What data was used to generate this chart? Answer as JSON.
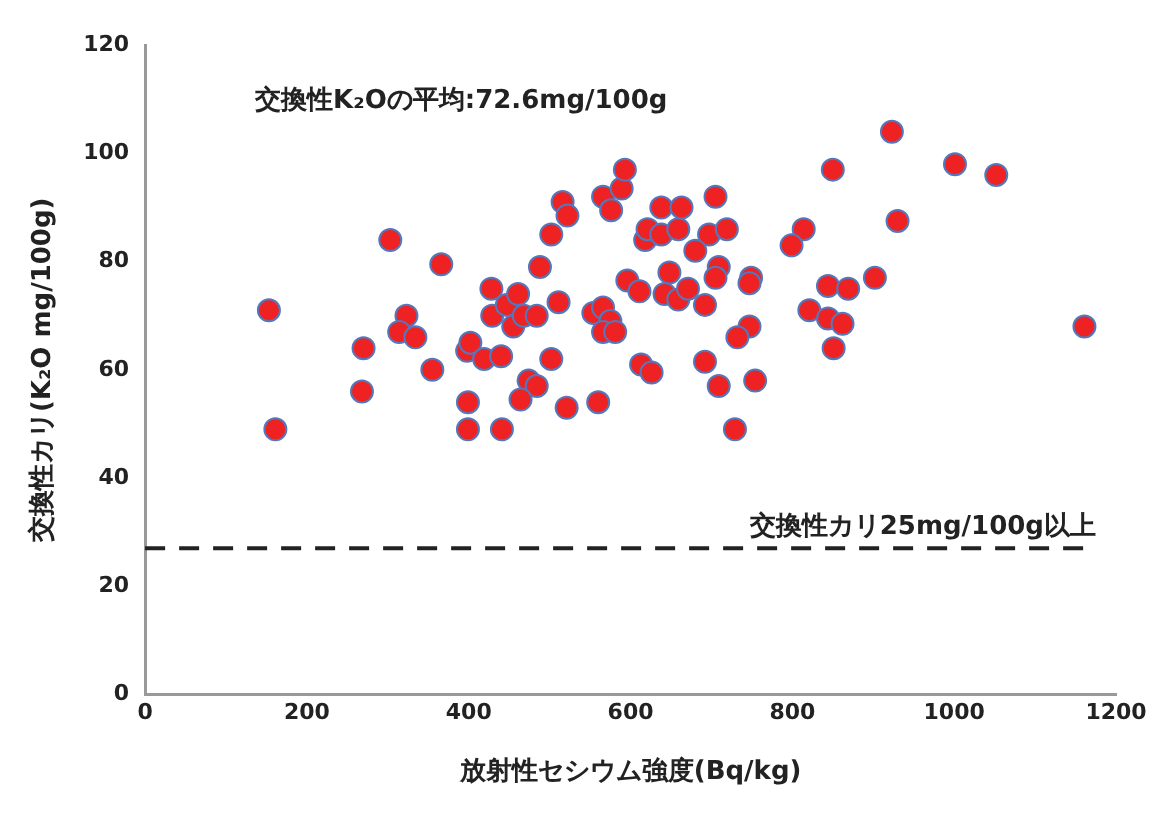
{
  "chart_data": {
    "type": "scatter",
    "xlabel": "放射性セシウム強度(Bq/kg)",
    "ylabel": "交換性カリ(K₂O mg/100g)",
    "annotations": [
      "交換性K₂Oの平均:72.6mg/100g"
    ],
    "x": [
      153,
      161,
      303,
      366,
      270,
      268,
      323,
      314,
      334,
      355,
      398,
      402,
      419,
      440,
      399,
      399,
      441,
      428,
      429,
      447,
      461,
      455,
      468,
      484,
      488,
      502,
      511,
      502,
      474,
      484,
      464,
      521,
      560,
      516,
      522,
      566,
      576,
      589,
      593,
      554,
      566,
      575,
      566,
      581,
      596,
      611,
      618,
      621,
      638,
      638,
      659,
      663,
      648,
      642,
      659,
      613,
      626,
      705,
      697,
      719,
      680,
      709,
      705,
      749,
      747,
      671,
      692,
      747,
      732,
      692,
      709,
      754,
      729,
      850,
      923,
      1001,
      1052,
      930,
      814,
      799,
      902,
      844,
      869,
      821,
      844,
      862,
      851,
      1161
    ],
    "series": [
      {
        "color": "#ee2222",
        "values": [
          71,
          49,
          84,
          79.5,
          64,
          56,
          70,
          67,
          66,
          60,
          63.5,
          65,
          62,
          62.5,
          54,
          49,
          49,
          75,
          70,
          72,
          74,
          68,
          70,
          70,
          79,
          85,
          72.5,
          62,
          58,
          57,
          54.5,
          53,
          54,
          91,
          88.5,
          92,
          89.5,
          93.5,
          97,
          70.5,
          71.5,
          69,
          67,
          67,
          76.5,
          74.5,
          84,
          86,
          90,
          85,
          86,
          90,
          78,
          74,
          73,
          61,
          59.5,
          92,
          85,
          86,
          82,
          79,
          77,
          77,
          76,
          75,
          72,
          68,
          66,
          61.5,
          57,
          58,
          49,
          97,
          104,
          98,
          96,
          87.5,
          86,
          83,
          77,
          75.5,
          75,
          71,
          69.5,
          68.5,
          64,
          68
        ]
      }
    ],
    "xlim": [
      0,
      1200
    ],
    "xticks": [
      0,
      200,
      400,
      600,
      800,
      1000,
      1200
    ],
    "ylim": [
      0,
      120
    ],
    "yticks": [
      0,
      20,
      40,
      60,
      80,
      100,
      120
    ],
    "grid": false,
    "legend": false,
    "marker": "circle",
    "ref_lines": [
      {
        "axis": "y",
        "value": 27,
        "label": "交換性カリ25mg/100g以上",
        "color": "#222222",
        "line_style": "dashed"
      }
    ]
  }
}
